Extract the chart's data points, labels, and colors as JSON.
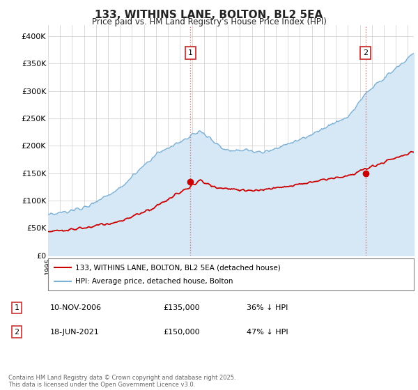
{
  "title": "133, WITHINS LANE, BOLTON, BL2 5EA",
  "subtitle": "Price paid vs. HM Land Registry's House Price Index (HPI)",
  "ylabel_ticks": [
    "£0",
    "£50K",
    "£100K",
    "£150K",
    "£200K",
    "£250K",
    "£300K",
    "£350K",
    "£400K"
  ],
  "ytick_values": [
    0,
    50000,
    100000,
    150000,
    200000,
    250000,
    300000,
    350000,
    400000
  ],
  "ylim": [
    0,
    420000
  ],
  "xlim_start": 1995.0,
  "xlim_end": 2025.5,
  "red_line_color": "#cc0000",
  "blue_line_color": "#7bafd4",
  "blue_fill_color": "#d6e8f5",
  "marker1_x": 2006.87,
  "marker1_y": 135000,
  "marker2_x": 2021.47,
  "marker2_y": 150000,
  "legend_label_red": "133, WITHINS LANE, BOLTON, BL2 5EA (detached house)",
  "legend_label_blue": "HPI: Average price, detached house, Bolton",
  "footer": "Contains HM Land Registry data © Crown copyright and database right 2025.\nThis data is licensed under the Open Government Licence v3.0.",
  "background_color": "#ffffff",
  "grid_color": "#cccccc"
}
